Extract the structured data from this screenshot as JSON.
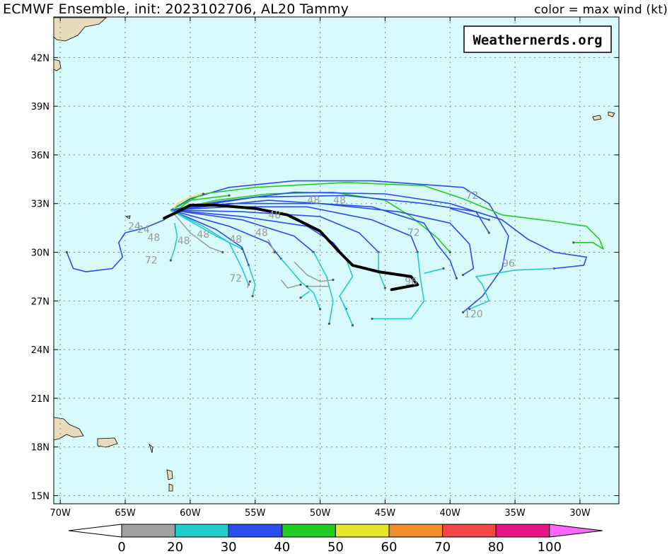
{
  "header": {
    "title": "ECMWF Ensemble, init: 2023102706, AL20 Tammy",
    "legend_note": "color = max wind (kt)"
  },
  "watermark": "Weathernerds.org",
  "colors": {
    "ocean": "#d8fafa",
    "land": "#e6dcbc",
    "mean_track": "#000000"
  },
  "map_extent": {
    "lon_min": -70.5,
    "lon_max": -27.0,
    "lat_min": 14.5,
    "lat_max": 44.5
  },
  "axes": {
    "lat_ticks": [
      {
        "value": 15,
        "label": "15N"
      },
      {
        "value": 18,
        "label": "18N"
      },
      {
        "value": 21,
        "label": "21N"
      },
      {
        "value": 24,
        "label": "24N"
      },
      {
        "value": 27,
        "label": "27N"
      },
      {
        "value": 30,
        "label": "30N"
      },
      {
        "value": 33,
        "label": "33N"
      },
      {
        "value": 36,
        "label": "36N"
      },
      {
        "value": 39,
        "label": "39N"
      },
      {
        "value": 42,
        "label": "42N"
      }
    ],
    "lon_ticks": [
      {
        "value": -70,
        "label": "70W"
      },
      {
        "value": -65,
        "label": "65W"
      },
      {
        "value": -60,
        "label": "60W"
      },
      {
        "value": -55,
        "label": "55W"
      },
      {
        "value": -50,
        "label": "50W"
      },
      {
        "value": -45,
        "label": "45W"
      },
      {
        "value": -40,
        "label": "40W"
      },
      {
        "value": -35,
        "label": "35W"
      },
      {
        "value": -30,
        "label": "30W"
      }
    ]
  },
  "colorbar": {
    "under_color": "#ffffff",
    "over_color": "#ff66ff",
    "bins": [
      {
        "color": "#a0a0a0"
      },
      {
        "color": "#22cccc"
      },
      {
        "color": "#2a4cf0"
      },
      {
        "color": "#22cc22"
      },
      {
        "color": "#e6e62a"
      },
      {
        "color": "#f08c2a"
      },
      {
        "color": "#f04646"
      },
      {
        "color": "#e61487"
      }
    ],
    "labels": [
      "0",
      "20",
      "30",
      "40",
      "50",
      "60",
      "70",
      "80",
      "100"
    ]
  },
  "tracks": [
    {
      "color": "#2a4cf0",
      "points": [
        [
          -61.5,
          32.6
        ],
        [
          -60,
          33.3
        ],
        [
          -57,
          34.0
        ],
        [
          -52,
          34.4
        ],
        [
          -46,
          34.4
        ],
        [
          -39,
          34.0
        ],
        [
          -37,
          33.0
        ],
        [
          -35.5,
          31.0
        ],
        [
          -36,
          29.0
        ],
        [
          -37.5,
          27.3
        ],
        [
          -39,
          26.3
        ]
      ]
    },
    {
      "color": "#22cc22",
      "points": [
        [
          -61.5,
          32.6
        ],
        [
          -59,
          33.6
        ],
        [
          -55,
          34.0
        ],
        [
          -48,
          34.3
        ],
        [
          -42,
          34.1
        ],
        [
          -39,
          33.3
        ],
        [
          -36,
          32.3
        ],
        [
          -32,
          31.9
        ],
        [
          -29.5,
          31.6
        ],
        [
          -28.5,
          30.8
        ],
        [
          -28.2,
          30.2
        ],
        [
          -29,
          30.6
        ],
        [
          -30.5,
          30.6
        ]
      ]
    },
    {
      "color": "#22cc22",
      "points": [
        [
          -61.5,
          32.6
        ],
        [
          -58,
          33.2
        ],
        [
          -54,
          33.6
        ],
        [
          -49,
          33.7
        ],
        [
          -45,
          33.2
        ],
        [
          -43,
          32.2
        ],
        [
          -41,
          30.9
        ],
        [
          -40,
          30.0
        ]
      ]
    },
    {
      "color": "#2a4cf0",
      "points": [
        [
          -61.5,
          32.6
        ],
        [
          -58,
          33.1
        ],
        [
          -52,
          33.7
        ],
        [
          -45,
          33.6
        ],
        [
          -40,
          33.0
        ],
        [
          -36,
          32.0
        ],
        [
          -34,
          30.8
        ],
        [
          -32,
          30.0
        ],
        [
          -29.5,
          29.7
        ],
        [
          -29.7,
          29.2
        ],
        [
          -32,
          29.0
        ]
      ]
    },
    {
      "color": "#22cccc",
      "points": [
        [
          -32,
          29.0
        ],
        [
          -35,
          28.9
        ],
        [
          -38,
          28.5
        ],
        [
          -37.5,
          28.0
        ],
        [
          -37,
          27.0
        ],
        [
          -38.5,
          26.5
        ]
      ]
    },
    {
      "color": "#2a4cf0",
      "points": [
        [
          -61.5,
          32.6
        ],
        [
          -57,
          33.0
        ],
        [
          -50,
          33.0
        ],
        [
          -44,
          32.5
        ],
        [
          -40,
          31.8
        ],
        [
          -38.5,
          30.5
        ],
        [
          -38.2,
          29.0
        ],
        [
          -39,
          28.6
        ]
      ]
    },
    {
      "color": "#2a4cf0",
      "points": [
        [
          -61.5,
          32.6
        ],
        [
          -57,
          32.8
        ],
        [
          -51,
          32.8
        ],
        [
          -46,
          32.0
        ],
        [
          -43,
          31.0
        ],
        [
          -42.5,
          30.0
        ]
      ]
    },
    {
      "color": "#22cccc",
      "points": [
        [
          -42.5,
          30.0
        ],
        [
          -42.3,
          28.5
        ],
        [
          -42,
          27.0
        ],
        [
          -43,
          25.9
        ],
        [
          -46,
          25.9
        ]
      ]
    },
    {
      "color": "#2a4cf0",
      "points": [
        [
          -61.5,
          32.6
        ],
        [
          -56,
          32.5
        ],
        [
          -50,
          32.2
        ],
        [
          -47,
          31.2
        ],
        [
          -45.5,
          30.0
        ]
      ]
    },
    {
      "color": "#22cccc",
      "points": [
        [
          -45.5,
          30.0
        ],
        [
          -45.5,
          28.8
        ],
        [
          -45,
          27.8
        ]
      ]
    },
    {
      "color": "#2a4cf0",
      "points": [
        [
          -61.5,
          32.6
        ],
        [
          -56,
          32.2
        ],
        [
          -51,
          31.6
        ],
        [
          -49,
          30.6
        ],
        [
          -48,
          29.6
        ]
      ]
    },
    {
      "color": "#22cccc",
      "points": [
        [
          -48,
          29.6
        ],
        [
          -47.5,
          28.5
        ],
        [
          -48.5,
          27.3
        ],
        [
          -48,
          26.5
        ]
      ]
    },
    {
      "color": "#2a4cf0",
      "points": [
        [
          -61.5,
          32.6
        ],
        [
          -56,
          32.0
        ],
        [
          -52,
          31.0
        ],
        [
          -50.5,
          30.0
        ]
      ]
    },
    {
      "color": "#22cccc",
      "points": [
        [
          -50.5,
          30.0
        ],
        [
          -49.5,
          28.5
        ],
        [
          -49,
          27.0
        ],
        [
          -49.3,
          25.6
        ]
      ]
    },
    {
      "color": "#2a4cf0",
      "points": [
        [
          -61.5,
          32.6
        ],
        [
          -57,
          31.6
        ],
        [
          -54,
          30.6
        ],
        [
          -53,
          29.6
        ]
      ]
    },
    {
      "color": "#22cccc",
      "points": [
        [
          -53,
          29.6
        ],
        [
          -51.5,
          28.2
        ],
        [
          -50.5,
          27.5
        ],
        [
          -50,
          26.5
        ]
      ]
    },
    {
      "color": "#2a4cf0",
      "points": [
        [
          -61.5,
          32.6
        ],
        [
          -58,
          31.4
        ],
        [
          -56,
          30.3
        ],
        [
          -55.5,
          29.2
        ]
      ]
    },
    {
      "color": "#22cccc",
      "points": [
        [
          -55.5,
          29.2
        ],
        [
          -55,
          28.0
        ],
        [
          -55.2,
          27.3
        ]
      ]
    },
    {
      "color": "#22cccc",
      "points": [
        [
          -61.5,
          32.6
        ],
        [
          -59,
          31.6
        ],
        [
          -57,
          30.6
        ],
        [
          -56,
          29.0
        ],
        [
          -55.5,
          28.0
        ]
      ]
    },
    {
      "color": "#22cccc",
      "points": [
        [
          -61.2,
          31.8
        ],
        [
          -61,
          31.0
        ],
        [
          -61.2,
          30.2
        ],
        [
          -61.5,
          29.5
        ]
      ]
    },
    {
      "color": "#2a4cf0",
      "points": [
        [
          -62,
          32.0
        ],
        [
          -63.5,
          31.5
        ],
        [
          -65,
          31.2
        ],
        [
          -65.5,
          30.6
        ],
        [
          -65.2,
          29.7
        ],
        [
          -66,
          29.0
        ],
        [
          -68,
          28.8
        ],
        [
          -69,
          29.0
        ],
        [
          -69.5,
          30.0
        ]
      ]
    },
    {
      "color": "#a0a0a0",
      "points": [
        [
          -61.5,
          32.6
        ],
        [
          -60,
          31.2
        ],
        [
          -58.5,
          30.3
        ],
        [
          -57.5,
          30.0
        ]
      ]
    },
    {
      "color": "#a0a0a0",
      "points": [
        [
          -52,
          29.4
        ],
        [
          -51,
          28.6
        ],
        [
          -50,
          28.2
        ],
        [
          -49,
          28.3
        ]
      ]
    },
    {
      "color": "#a0a0a0",
      "points": [
        [
          -53,
          28.3
        ],
        [
          -52.5,
          27.8
        ],
        [
          -51.5,
          28.0
        ]
      ]
    },
    {
      "color": "#a0a0a0",
      "points": [
        [
          -49.3,
          27.9
        ],
        [
          -51,
          27.9
        ]
      ]
    },
    {
      "color": "#a0a0a0",
      "points": [
        [
          -55.6,
          27.8
        ],
        [
          -55.4,
          28.2
        ]
      ]
    },
    {
      "color": "#a0a0a0",
      "points": [
        [
          -54,
          30.8
        ],
        [
          -53.5,
          30.0
        ]
      ]
    },
    {
      "color": "#22cc22",
      "points": [
        [
          -62,
          32.0
        ],
        [
          -60,
          33.2
        ],
        [
          -57,
          33.5
        ]
      ]
    },
    {
      "color": "#e6e62a",
      "points": [
        [
          -61.5,
          32.3
        ],
        [
          -61,
          33.0
        ],
        [
          -60,
          33.4
        ],
        [
          -59,
          33.6
        ]
      ]
    },
    {
      "color": "#2a4cf0",
      "points": [
        [
          -61.5,
          32.6
        ],
        [
          -54,
          33.2
        ],
        [
          -46,
          32.8
        ],
        [
          -42,
          31.8
        ],
        [
          -41,
          30.5
        ],
        [
          -40,
          29.5
        ],
        [
          -39.5,
          28.4
        ]
      ]
    },
    {
      "color": "#2a4cf0",
      "points": [
        [
          -61.5,
          32.6
        ],
        [
          -55,
          33.4
        ],
        [
          -48,
          33.5
        ],
        [
          -42,
          33.0
        ],
        [
          -38,
          32.5
        ],
        [
          -37,
          31.2
        ]
      ]
    },
    {
      "color": "#2a4cf0",
      "points": [
        [
          -40,
          32.7
        ],
        [
          -37,
          32.0
        ]
      ]
    },
    {
      "color": "#22cccc",
      "points": [
        [
          -61.5,
          32.6
        ],
        [
          -58,
          31.0
        ],
        [
          -56,
          30.2
        ]
      ]
    },
    {
      "color": "#22cccc",
      "points": [
        [
          -48.2,
          26.8
        ],
        [
          -47.5,
          25.5
        ]
      ]
    },
    {
      "color": "#22cccc",
      "points": [
        [
          -42,
          28.7
        ],
        [
          -40.5,
          29.0
        ]
      ]
    },
    {
      "color": "#22cccc",
      "points": [
        [
          -50.8,
          27.6
        ],
        [
          -51.5,
          27.2
        ]
      ]
    }
  ],
  "mean_track": [
    [
      -62,
      32.1
    ],
    [
      -61.2,
      32.4
    ],
    [
      -60,
      32.9
    ],
    [
      -58,
      32.9
    ],
    [
      -55,
      32.7
    ],
    [
      -52.5,
      32.3
    ],
    [
      -50,
      31.3
    ],
    [
      -48.5,
      30.0
    ],
    [
      -47.5,
      29.2
    ],
    [
      -45.5,
      28.8
    ],
    [
      -43,
      28.5
    ],
    [
      -42.5,
      28.0
    ],
    [
      -44.5,
      27.7
    ]
  ],
  "track_labels": [
    {
      "text": "72",
      "lon": -38.3,
      "lat": 33.3
    },
    {
      "text": "96",
      "lon": -35.5,
      "lat": 29.1
    },
    {
      "text": "120",
      "lon": -38.2,
      "lat": 26.0
    },
    {
      "text": "72",
      "lon": -42.8,
      "lat": 31.0
    },
    {
      "text": "96",
      "lon": -43.0,
      "lat": 28.0
    },
    {
      "text": "48",
      "lon": -48.5,
      "lat": 33.0
    },
    {
      "text": "48",
      "lon": -50.5,
      "lat": 33.0
    },
    {
      "text": "48",
      "lon": -53.5,
      "lat": 32.1
    },
    {
      "text": "48",
      "lon": -54.5,
      "lat": 31.0
    },
    {
      "text": "48",
      "lon": -56.5,
      "lat": 30.6
    },
    {
      "text": "48",
      "lon": -59.0,
      "lat": 30.9
    },
    {
      "text": "48",
      "lon": -60.5,
      "lat": 30.5
    },
    {
      "text": "48",
      "lon": -62.8,
      "lat": 30.7
    },
    {
      "text": "24",
      "lon": -63.6,
      "lat": 31.2
    },
    {
      "text": "24",
      "lon": -64.3,
      "lat": 31.4
    },
    {
      "text": "72",
      "lon": -63.0,
      "lat": 29.3
    },
    {
      "text": "72",
      "lon": -56.5,
      "lat": 28.2
    }
  ]
}
